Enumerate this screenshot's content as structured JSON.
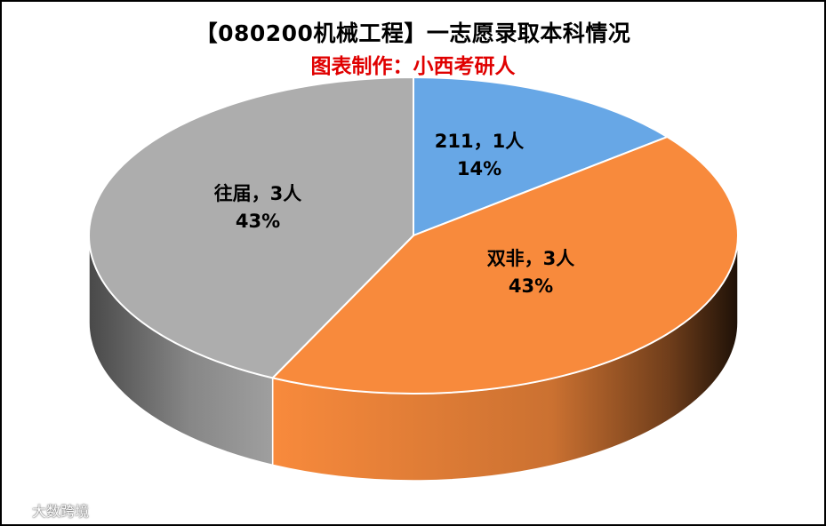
{
  "title": "【080200机械工程】一志愿录取本科情况",
  "subtitle": "图表制作：小西考研人",
  "watermark": {
    "text": "大数跨境",
    "icon": "logo-icon"
  },
  "colors": {
    "s211": "#67a7e6",
    "double_non": "#f88a3c",
    "past": "#adadad"
  },
  "chart_data": {
    "type": "pie",
    "style": "3d",
    "title": "【080200机械工程】一志愿录取本科情况",
    "subtitle": "图表制作：小西考研人",
    "slices": [
      {
        "name": "211",
        "value": 1,
        "percent": "14%",
        "label_line1": "211，1人",
        "label_line2": "14%",
        "color": "#67a7e6"
      },
      {
        "name": "双非",
        "value": 3,
        "percent": "43%",
        "label_line1": "双非，3人",
        "label_line2": "43%",
        "color": "#f88a3c"
      },
      {
        "name": "往届",
        "value": 3,
        "percent": "43%",
        "label_line1": "往届，3人",
        "label_line2": "43%",
        "color": "#adadad"
      }
    ]
  }
}
